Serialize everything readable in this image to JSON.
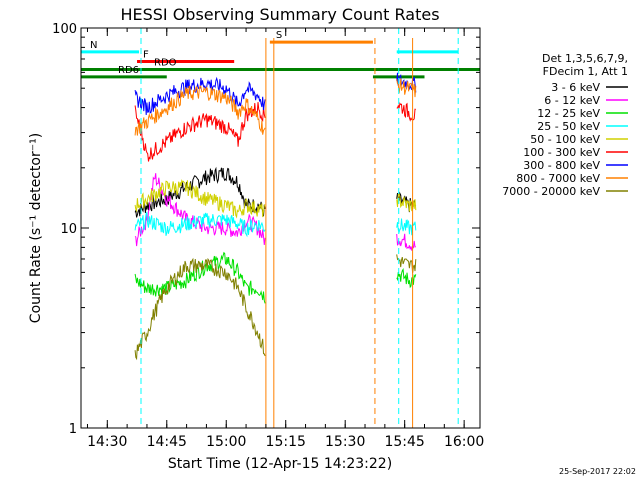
{
  "chart_data": {
    "type": "line",
    "title": "HESSI Observing Summary Count Rates",
    "xlabel": "Start Time (12-Apr-15 14:23:22)",
    "ylabel": "Count Rate (s⁻¹ detector⁻¹)",
    "xlim": [
      "14:23:22",
      "16:04:00"
    ],
    "ylim": [
      1,
      100
    ],
    "yscale": "log",
    "x_ticks": [
      "14:30",
      "14:45",
      "15:00",
      "15:15",
      "15:30",
      "15:45",
      "16:00"
    ],
    "y_ticks": [
      "1",
      "10",
      "100"
    ],
    "timestamp": "25-Sep-2017 22:02",
    "legend": {
      "placement": "right",
      "header": [
        "Det 1,3,5,6,7,9,",
        "FDecim 1, Att 1"
      ],
      "entries": [
        {
          "label": "3 - 6 keV",
          "color": "#000000"
        },
        {
          "label": "6 - 12 keV",
          "color": "#ff00ff"
        },
        {
          "label": "12 - 25 keV",
          "color": "#00e000"
        },
        {
          "label": "25 - 50 keV",
          "color": "#00ffff"
        },
        {
          "label": "50 - 100 keV",
          "color": "#d0d000"
        },
        {
          "label": "100 - 300 keV",
          "color": "#ff0000"
        },
        {
          "label": "300 - 800 keV",
          "color": "#0000ff"
        },
        {
          "label": "800 - 7000 keV",
          "color": "#ff8000"
        },
        {
          "label": "7000 - 20000 keV",
          "color": "#808000"
        }
      ]
    },
    "flags": [
      {
        "label": "N",
        "color": "#00ffff",
        "segments": [
          [
            "14:23:22",
            "14:38:00"
          ],
          [
            "15:43:00",
            "15:58:30"
          ]
        ],
        "level": 76
      },
      {
        "label": "F",
        "color": "#ff0000",
        "segments": [
          [
            "14:37:30",
            "15:02:00"
          ]
        ],
        "level": 68
      },
      {
        "label": "S",
        "color": "#ff8000",
        "segments": [
          [
            "15:11:00",
            "15:37:00"
          ]
        ],
        "level": 85
      },
      {
        "label": "RDO",
        "color": "#008000",
        "segments": [
          [
            "14:23:22",
            "16:04:00"
          ]
        ],
        "level": 62
      },
      {
        "label": "RD6",
        "color": "#008000",
        "segments": [
          [
            "14:23:22",
            "14:45:00"
          ],
          [
            "15:37:00",
            "15:50:00"
          ]
        ],
        "level": 57
      }
    ],
    "night_markers": [
      "14:23:22",
      "14:38:30",
      "15:43:30",
      "15:58:30"
    ],
    "saa_markers": [
      "15:10:00",
      "15:12:00",
      "15:37:30",
      "15:47:00"
    ],
    "series": [
      {
        "name": "3 - 6 keV",
        "color": "#000000",
        "x": [
          "14:37",
          "14:40",
          "14:45",
          "14:50",
          "14:55",
          "15:00",
          "15:03",
          "15:05",
          "15:08",
          "15:10",
          "15:43",
          "15:46",
          "15:48"
        ],
        "values": [
          12,
          13,
          14,
          16,
          18,
          19,
          17,
          13,
          13,
          12,
          14,
          13,
          13
        ]
      },
      {
        "name": "6 - 12 keV",
        "color": "#ff00ff",
        "x": [
          "14:37",
          "14:40",
          "14:42",
          "14:45",
          "14:50",
          "14:55",
          "15:00",
          "15:03",
          "15:05",
          "15:08",
          "15:10",
          "15:43",
          "15:46",
          "15:48"
        ],
        "values": [
          8.5,
          11,
          18,
          14,
          11,
          10,
          10,
          9.5,
          11,
          10,
          8.5,
          9,
          8.5,
          8
        ]
      },
      {
        "name": "12 - 25 keV",
        "color": "#00e000",
        "x": [
          "14:37",
          "14:40",
          "14:45",
          "14:50",
          "14:55",
          "15:00",
          "15:03",
          "15:05",
          "15:08",
          "15:10",
          "15:43",
          "15:46",
          "15:48"
        ],
        "values": [
          5.5,
          5,
          5,
          5.5,
          6.5,
          7,
          6,
          5,
          5,
          4.5,
          6,
          5.5,
          5.5
        ]
      },
      {
        "name": "25 - 50 keV",
        "color": "#00ffff",
        "x": [
          "14:37",
          "14:40",
          "14:45",
          "14:50",
          "14:55",
          "15:00",
          "15:03",
          "15:05",
          "15:08",
          "15:10",
          "15:43",
          "15:46",
          "15:48"
        ],
        "values": [
          10,
          11,
          10,
          10.5,
          11,
          11,
          10.5,
          10,
          10.5,
          10,
          10.5,
          10,
          10
        ]
      },
      {
        "name": "50 - 100 keV",
        "color": "#d0d000",
        "x": [
          "14:37",
          "14:40",
          "14:45",
          "14:50",
          "14:55",
          "15:00",
          "15:03",
          "15:05",
          "15:08",
          "15:10",
          "15:43",
          "15:46",
          "15:48"
        ],
        "values": [
          13,
          14,
          16,
          16,
          14,
          13,
          12,
          13,
          12.5,
          12,
          14,
          13,
          13
        ]
      },
      {
        "name": "100 - 300 keV",
        "color": "#ff0000",
        "x": [
          "14:37",
          "14:40",
          "14:45",
          "14:50",
          "14:55",
          "15:00",
          "15:03",
          "15:05",
          "15:08",
          "15:10",
          "15:43",
          "15:46",
          "15:48"
        ],
        "values": [
          38,
          23,
          27,
          32,
          35,
          32,
          27,
          37,
          40,
          36,
          42,
          38,
          36
        ]
      },
      {
        "name": "300 - 800 keV",
        "color": "#0000ff",
        "x": [
          "14:37",
          "14:40",
          "14:45",
          "14:50",
          "14:55",
          "15:00",
          "15:03",
          "15:05",
          "15:08",
          "15:10",
          "15:43",
          "15:46",
          "15:48"
        ],
        "values": [
          45,
          40,
          46,
          51,
          53,
          50,
          41,
          50,
          46,
          40,
          55,
          53,
          52
        ]
      },
      {
        "name": "800 - 7000 keV",
        "color": "#ff8000",
        "x": [
          "14:37",
          "14:40",
          "14:45",
          "14:50",
          "14:55",
          "15:00",
          "15:03",
          "15:05",
          "15:08",
          "15:10",
          "15:43",
          "15:46",
          "15:48"
        ],
        "values": [
          31,
          34,
          40,
          47,
          48,
          45,
          38,
          42,
          35,
          30,
          52,
          50,
          48
        ]
      },
      {
        "name": "7000 - 20000 keV",
        "color": "#808000",
        "x": [
          "14:37",
          "14:40",
          "14:45",
          "14:50",
          "14:55",
          "15:00",
          "15:03",
          "15:05",
          "15:08",
          "15:10",
          "15:43",
          "15:46",
          "15:48"
        ],
        "values": [
          2.3,
          3,
          5,
          6.5,
          6.5,
          6,
          5,
          4,
          3,
          2.3,
          7,
          6.5,
          6.5
        ]
      }
    ]
  }
}
